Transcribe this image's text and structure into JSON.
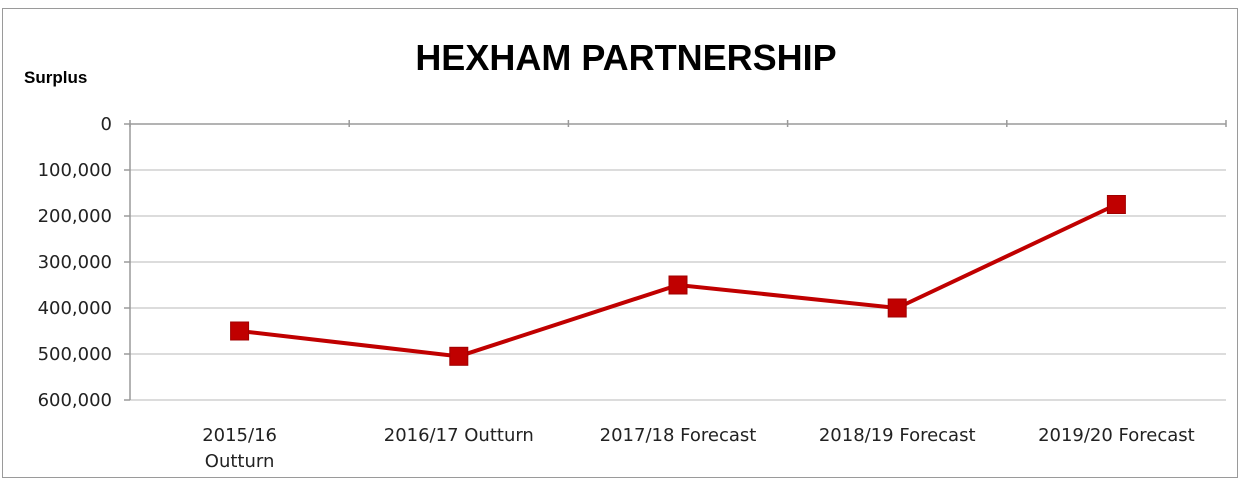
{
  "chart_data": {
    "type": "line",
    "title": "HEXHAM PARTNERSHIP",
    "ylabel": "Surplus",
    "xlabel": "",
    "y_inverted": true,
    "ylim": [
      0,
      600000
    ],
    "yticks": [
      "0",
      "100,000",
      "200,000",
      "300,000",
      "400,000",
      "500,000",
      "600,000"
    ],
    "grid": true,
    "categories": [
      [
        "2015/16",
        "Outturn"
      ],
      [
        "2016/17  Outturn"
      ],
      [
        "2017/18  Forecast"
      ],
      [
        "2018/19   Forecast"
      ],
      [
        "2019/20  Forecast"
      ]
    ],
    "series": [
      {
        "values": [
          450000,
          505000,
          350000,
          400000,
          175000
        ],
        "color": "#c00000",
        "marker": "square"
      }
    ]
  }
}
